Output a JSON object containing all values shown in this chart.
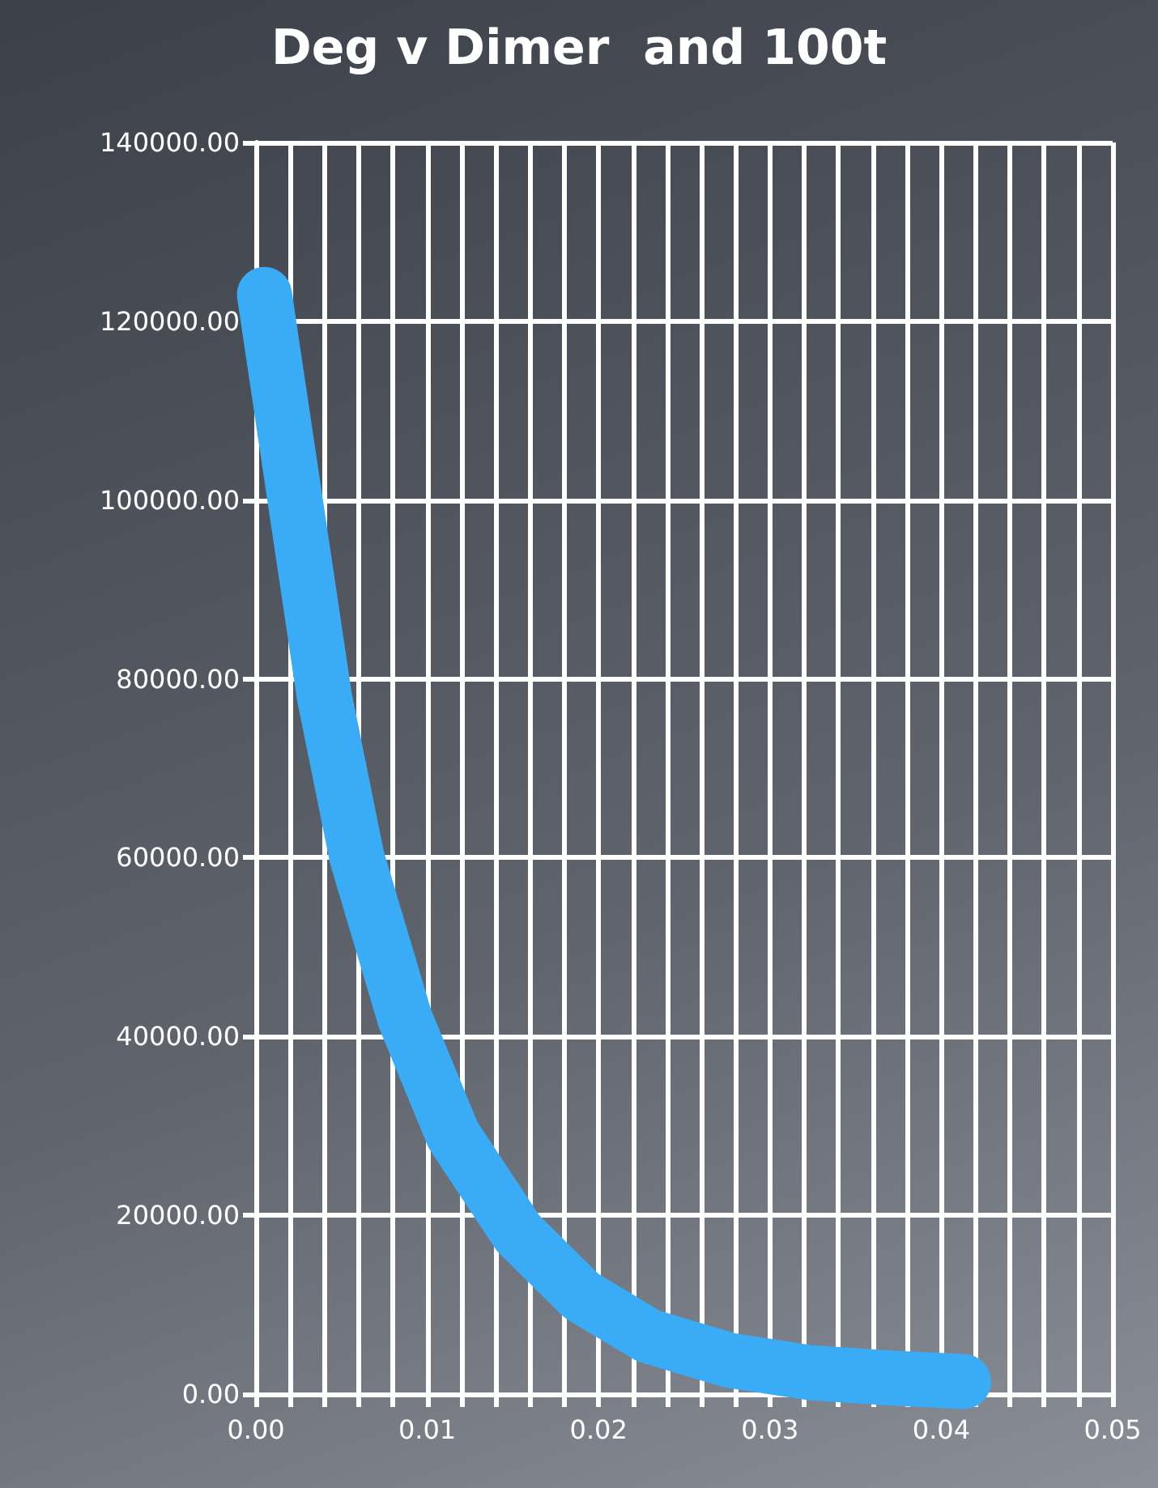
{
  "chart_data": {
    "type": "line",
    "title": "Deg v Dimer  and 100t",
    "x": [
      0.0005,
      0.0026,
      0.004,
      0.0059,
      0.0087,
      0.0115,
      0.0153,
      0.019,
      0.0229,
      0.0276,
      0.0323,
      0.037,
      0.0413
    ],
    "series": [
      {
        "color": "#3aabf5",
        "values": [
          123000,
          96000,
          78000,
          60000,
          42000,
          29000,
          18000,
          11000,
          6500,
          3800,
          2400,
          1800,
          1400
        ]
      }
    ],
    "xlim": [
      0,
      0.05
    ],
    "xticks": [
      {
        "value": 0,
        "label": "0.00"
      },
      {
        "value": 0.002,
        "label": null
      },
      {
        "value": 0.004,
        "label": null
      },
      {
        "value": 0.006,
        "label": null
      },
      {
        "value": 0.008,
        "label": null
      },
      {
        "value": 0.01,
        "label": "0.01"
      },
      {
        "value": 0.012,
        "label": null
      },
      {
        "value": 0.014,
        "label": null
      },
      {
        "value": 0.016,
        "label": null
      },
      {
        "value": 0.018,
        "label": null
      },
      {
        "value": 0.02,
        "label": "0.02"
      },
      {
        "value": 0.022,
        "label": null
      },
      {
        "value": 0.024,
        "label": null
      },
      {
        "value": 0.026,
        "label": null
      },
      {
        "value": 0.028,
        "label": null
      },
      {
        "value": 0.03,
        "label": "0.03"
      },
      {
        "value": 0.032,
        "label": null
      },
      {
        "value": 0.034,
        "label": null
      },
      {
        "value": 0.036,
        "label": null
      },
      {
        "value": 0.038,
        "label": null
      },
      {
        "value": 0.04,
        "label": "0.04"
      },
      {
        "value": 0.042,
        "label": null
      },
      {
        "value": 0.044,
        "label": null
      },
      {
        "value": 0.046,
        "label": null
      },
      {
        "value": 0.048,
        "label": null
      },
      {
        "value": 0.05,
        "label": "0.05"
      }
    ],
    "ylim": [
      0,
      140000
    ],
    "yticks": [
      {
        "value": 0,
        "label": "0.00"
      },
      {
        "value": 20000,
        "label": "20000.00"
      },
      {
        "value": 40000,
        "label": "40000.00"
      },
      {
        "value": 60000,
        "label": "60000.00"
      },
      {
        "value": 80000,
        "label": "80000.00"
      },
      {
        "value": 100000,
        "label": "100000.00"
      },
      {
        "value": 120000,
        "label": "120000.00"
      },
      {
        "value": 140000,
        "label": "140000.00"
      }
    ],
    "grid": true,
    "line_style": "solid"
  }
}
